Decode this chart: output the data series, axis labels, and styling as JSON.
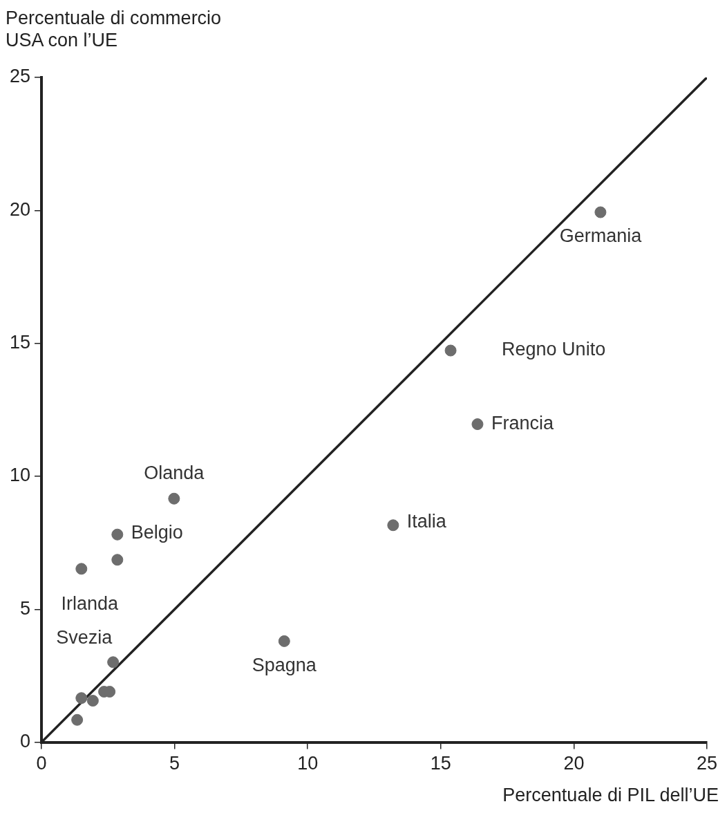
{
  "chart_data": {
    "type": "scatter",
    "xlabel": "Percentuale di PIL dell’UE",
    "ylabel": "Percentuale di commercio\nUSA con l’UE",
    "xlim": [
      0,
      25
    ],
    "ylim": [
      0,
      25
    ],
    "xticks": [
      0,
      5,
      10,
      15,
      20,
      25
    ],
    "yticks": [
      0,
      5,
      10,
      15,
      20,
      25
    ],
    "grid": false,
    "legend": false,
    "series": [
      {
        "marker": "circle",
        "color": "#6d6d6d",
        "x": [
          21.0,
          15.37,
          16.38,
          13.21,
          9.12,
          4.98,
          2.85,
          2.85,
          1.5,
          2.69,
          1.5,
          1.93,
          2.35,
          2.56,
          1.34
        ],
        "values": [
          19.93,
          14.73,
          11.96,
          8.16,
          3.8,
          9.16,
          7.81,
          6.86,
          6.52,
          3.01,
          1.66,
          1.56,
          1.9,
          1.9,
          0.84
        ]
      },
      {
        "type": "line",
        "marker": "none",
        "color": "#222222",
        "x": [
          0,
          25
        ],
        "values": [
          0,
          25
        ]
      }
    ],
    "annotations": [
      {
        "text": "Germania",
        "x": 21.0,
        "y": 19.93
      },
      {
        "text": "Regno Unito",
        "x": 15.37,
        "y": 14.73
      },
      {
        "text": "Francia",
        "x": 16.38,
        "y": 11.96
      },
      {
        "text": "Italia",
        "x": 13.21,
        "y": 8.16
      },
      {
        "text": "Spagna",
        "x": 9.12,
        "y": 3.8
      },
      {
        "text": "Olanda",
        "x": 4.98,
        "y": 9.16
      },
      {
        "text": "Belgio",
        "x": 2.85,
        "y": 7.81
      },
      {
        "text": "Irlanda",
        "x": 1.5,
        "y": 6.52
      },
      {
        "text": "Svezia",
        "x": 2.69,
        "y": 3.01
      }
    ]
  }
}
